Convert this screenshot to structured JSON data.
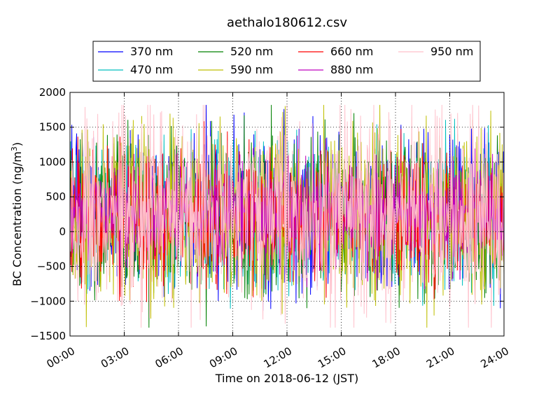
{
  "chart_data": {
    "type": "line",
    "title": "aethalo180612.csv",
    "xlabel": "Time on 2018-06-12 (JST)",
    "ylabel_main": "BC Concentration (ng/m",
    "ylabel_sup": "3",
    "ylabel_tail": ")",
    "xlim": [
      "00:00",
      "24:00"
    ],
    "ylim": [
      -1500,
      2000
    ],
    "x_ticks": [
      "00:00",
      "03:00",
      "06:00",
      "09:00",
      "12:00",
      "15:00",
      "18:00",
      "21:00",
      "24:00"
    ],
    "y_ticks": [
      "2000",
      "1500",
      "1000",
      "500",
      "0",
      "−500",
      "−1000",
      "−1500"
    ],
    "y_tick_values": [
      2000,
      1500,
      1000,
      500,
      0,
      -500,
      -1000,
      -1500
    ],
    "grid": true,
    "legend_position": "top",
    "series": [
      {
        "name": "370 nm",
        "color": "#0000ff",
        "amp": 620,
        "seed": 11
      },
      {
        "name": "470 nm",
        "color": "#00bfbf",
        "amp": 560,
        "seed": 23
      },
      {
        "name": "520 nm",
        "color": "#008000",
        "amp": 600,
        "seed": 37
      },
      {
        "name": "590 nm",
        "color": "#bfbf00",
        "amp": 640,
        "seed": 41
      },
      {
        "name": "660 nm",
        "color": "#ff0000",
        "amp": 480,
        "seed": 53
      },
      {
        "name": "880 nm",
        "color": "#bf00bf",
        "amp": 430,
        "seed": 67
      },
      {
        "name": "950 nm",
        "color": "#ffc0cb",
        "amp": 780,
        "seed": 79
      }
    ],
    "sample_step_minutes": 2,
    "mean_value": 250
  }
}
